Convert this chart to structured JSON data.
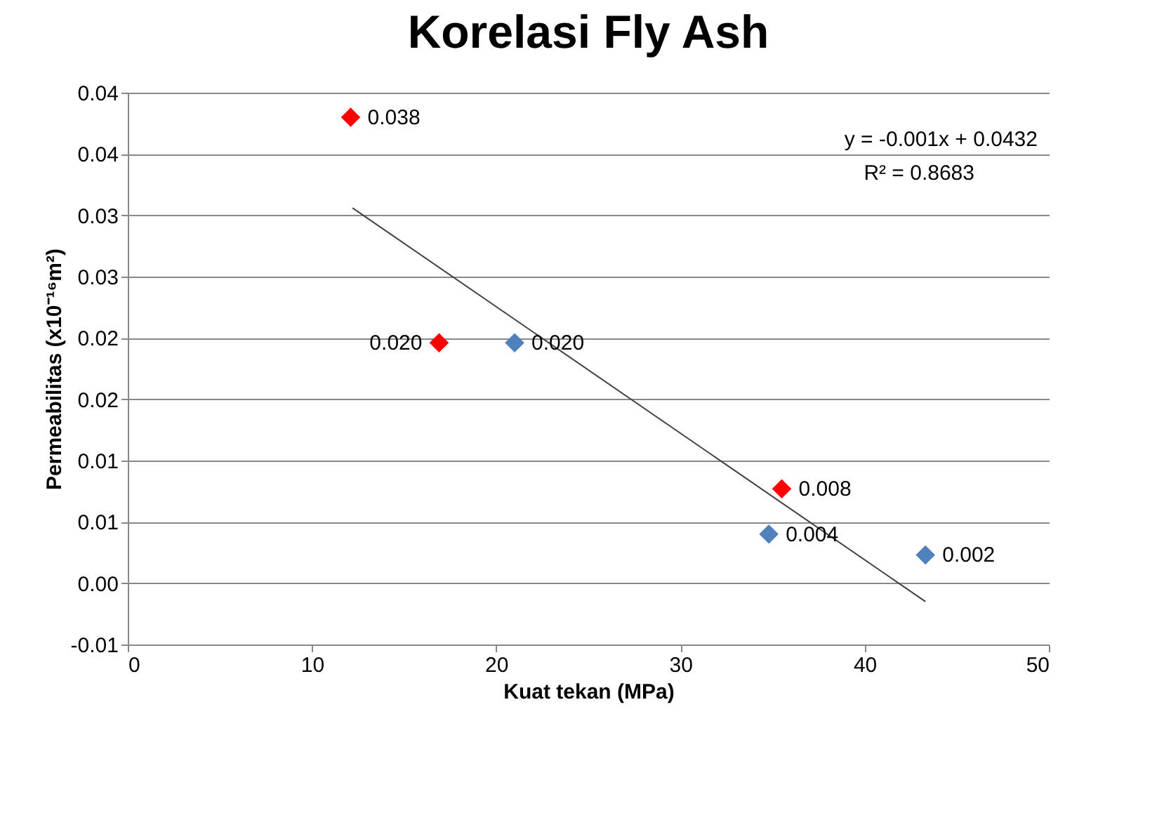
{
  "chart_data": {
    "type": "scatter",
    "title": "Korelasi Fly Ash",
    "xlabel": "Kuat tekan (MPa)",
    "ylabel": "Permeabilitas (x10⁻¹⁶m²)",
    "xlim": [
      0,
      50
    ],
    "xticks": [
      0,
      10,
      20,
      30,
      40,
      50
    ],
    "ylim": [
      -0.005,
      0.04
    ],
    "yticks": [
      {
        "value": -0.005,
        "label": "-0.01"
      },
      {
        "value": 0,
        "label": "0.00"
      },
      {
        "value": 0.005,
        "label": "0.01"
      },
      {
        "value": 0.01,
        "label": "0.01"
      },
      {
        "value": 0.015,
        "label": "0.02"
      },
      {
        "value": 0.02,
        "label": "0.02"
      },
      {
        "value": 0.025,
        "label": "0.03"
      },
      {
        "value": 0.03,
        "label": "0.03"
      },
      {
        "value": 0.035,
        "label": "0.04"
      },
      {
        "value": 0.04,
        "label": "0.04"
      }
    ],
    "grid": "y",
    "marker": "diamond",
    "series": [
      {
        "type": "scatter",
        "color": "#ff0000",
        "x": [
          12.1,
          16.9,
          35.5
        ],
        "values": [
          0.038,
          0.0196,
          0.0077
        ],
        "value_labels": [
          "0.038",
          "0.020",
          "0.008"
        ]
      },
      {
        "type": "scatter",
        "color": "#4f81bd",
        "x": [
          21.0,
          34.8,
          43.3
        ],
        "values": [
          0.0196,
          0.004,
          0.0023
        ],
        "value_labels": [
          "0.020",
          "0.004",
          "0.002"
        ]
      },
      {
        "type": "line",
        "color": "#404040",
        "x": [
          12.2,
          43.3
        ],
        "values": [
          0.0306,
          -0.0015
        ],
        "marker": "none"
      }
    ],
    "annotations": [
      "y = -0.001x + 0.0432",
      "R² = 0.8683"
    ]
  }
}
